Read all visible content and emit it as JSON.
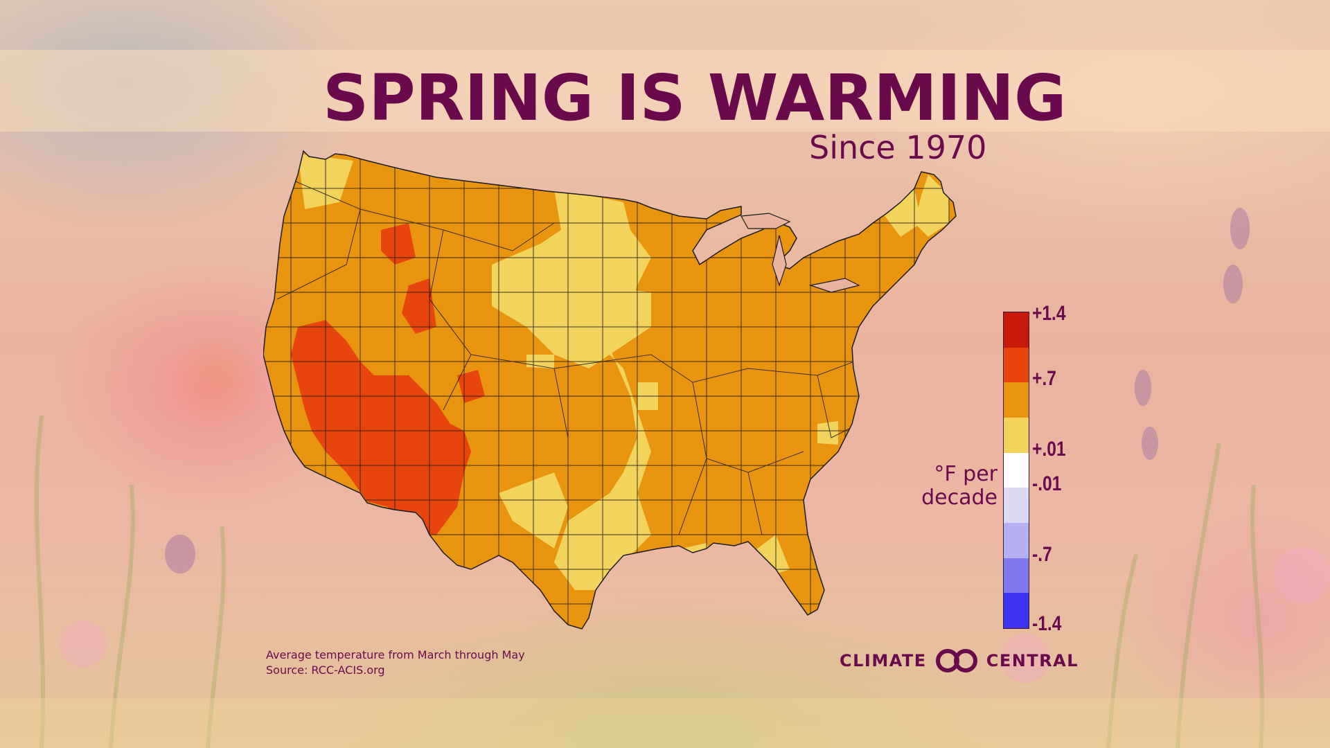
{
  "title": "SPRING IS WARMING",
  "subtitle": "Since 1970",
  "legend": {
    "unit": "°F per decade",
    "labels": [
      "+1.4",
      "+.7",
      "+.01",
      "-.01",
      "-.7",
      "-1.4"
    ],
    "bins": [
      {
        "color": "#c81a0a"
      },
      {
        "color": "#e7440e"
      },
      {
        "color": "#e8940f"
      },
      {
        "color": "#f2d35c"
      },
      {
        "color": "#ffffff"
      },
      {
        "color": "#dcd9f7"
      },
      {
        "color": "#b4b0f2"
      },
      {
        "color": "#7f78ef"
      },
      {
        "color": "#3c34f0"
      }
    ]
  },
  "map_colors": {
    "strong": "#e7440e",
    "moderate": "#e8940f",
    "mild": "#f2d35c",
    "border": "#1a1a1a"
  },
  "footnote": {
    "line1": "Average temperature from March through May",
    "line2": "Source: RCC-ACIS.org"
  },
  "logo": {
    "word1": "CLIMATE",
    "word2": "CENTRAL",
    "icon": "infinity-rings-icon"
  }
}
